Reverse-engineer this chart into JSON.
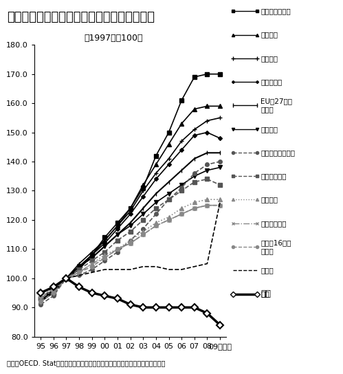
{
  "title": "日本だけ賃下げ！　一時間当たり賃金の推移",
  "subtitle": "（1997年＝100）",
  "footnote": "出典：OECD. Statより作成。民間産業計の賃金（時間外手当・一時金）含む。",
  "years": [
    1995,
    1996,
    1997,
    1998,
    1999,
    2000,
    2001,
    2002,
    2003,
    2004,
    2005,
    2006,
    2007,
    2008,
    2009
  ],
  "xlabels": [
    "95",
    "96",
    "97",
    "98",
    "99",
    "00",
    "01",
    "02",
    "03",
    "04",
    "05",
    "06",
    "07",
    "08",
    "09（年）"
  ],
  "ylim": [
    80.0,
    180.0
  ],
  "yticks": [
    80.0,
    90.0,
    100.0,
    110.0,
    120.0,
    130.0,
    140.0,
    150.0,
    160.0,
    170.0,
    180.0
  ],
  "series": [
    {
      "label": "オーストラリア",
      "color": "#000000",
      "linestyle": "-",
      "marker": "s",
      "markersize": 4,
      "linewidth": 1.2,
      "data": [
        93,
        95,
        100,
        103,
        108,
        114,
        119,
        124,
        131,
        142,
        150,
        161,
        169,
        170,
        170
      ]
    },
    {
      "label": "スペイン",
      "color": "#000000",
      "linestyle": "-",
      "marker": "^",
      "markersize": 4,
      "linewidth": 1.2,
      "data": [
        92,
        95,
        100,
        104,
        108,
        113,
        118,
        124,
        132,
        139,
        146,
        153,
        158,
        159,
        159
      ]
    },
    {
      "label": "イギリス",
      "color": "#000000",
      "linestyle": "-",
      "marker": "+",
      "markersize": 5,
      "linewidth": 1.2,
      "data": [
        92,
        96,
        100,
        105,
        109,
        113,
        118,
        123,
        130,
        136,
        141,
        147,
        151,
        154,
        155
      ]
    },
    {
      "label": "デンマーク",
      "color": "#000000",
      "linestyle": "-",
      "marker": "D",
      "markersize": 3,
      "linewidth": 1.2,
      "data": [
        93,
        96,
        100,
        104,
        108,
        112,
        117,
        122,
        128,
        134,
        139,
        144,
        149,
        150,
        148
      ]
    },
    {
      "label": "EU（27ヵ国\n平均）",
      "color": "#000000",
      "linestyle": "-",
      "marker": "|",
      "markersize": 5,
      "linewidth": 1.5,
      "data": [
        93,
        96,
        100,
        104,
        107,
        111,
        115,
        119,
        124,
        129,
        133,
        137,
        141,
        143,
        143
      ]
    },
    {
      "label": "アメリカ",
      "color": "#000000",
      "linestyle": "-",
      "marker": "v",
      "markersize": 4,
      "linewidth": 1.2,
      "data": [
        95,
        97,
        100,
        104,
        107,
        111,
        115,
        118,
        122,
        126,
        129,
        132,
        135,
        137,
        138
      ]
    },
    {
      "label": "ニュージーランド",
      "color": "#555555",
      "linestyle": "--",
      "marker": "o",
      "markersize": 4,
      "linewidth": 1.2,
      "data": [
        91,
        94,
        100,
        101,
        103,
        106,
        109,
        113,
        117,
        122,
        127,
        131,
        136,
        139,
        140
      ]
    },
    {
      "label": "スウェーデン",
      "color": "#555555",
      "linestyle": "--",
      "marker": "s",
      "markersize": 4,
      "linewidth": 1.2,
      "data": [
        93,
        97,
        100,
        103,
        106,
        109,
        113,
        116,
        120,
        124,
        127,
        130,
        133,
        134,
        132
      ]
    },
    {
      "label": "フランス",
      "color": "#888888",
      "linestyle": ":",
      "marker": "^",
      "markersize": 4,
      "linewidth": 1.2,
      "data": [
        94,
        96,
        100,
        102,
        105,
        108,
        110,
        113,
        116,
        119,
        121,
        124,
        126,
        127,
        127
      ]
    },
    {
      "label": "オーストリア",
      "color": "#888888",
      "linestyle": "-.",
      "marker": "x",
      "markersize": 4,
      "linewidth": 1.2,
      "data": [
        93,
        96,
        100,
        102,
        105,
        107,
        110,
        112,
        115,
        118,
        120,
        122,
        124,
        125,
        125
      ]
    },
    {
      "label": "欧州（16ヵ国\n平均）",
      "color": "#888888",
      "linestyle": "--",
      "marker": "o",
      "markersize": 4,
      "linewidth": 1.2,
      "data": [
        92,
        95,
        100,
        102,
        104,
        107,
        110,
        112,
        115,
        118,
        120,
        122,
        124,
        125,
        125
      ]
    },
    {
      "label": "ドイツ",
      "color": "#000000",
      "linestyle": "--",
      "marker": "",
      "markersize": 0,
      "linewidth": 1.2,
      "data": [
        95,
        97,
        100,
        101,
        102,
        103,
        103,
        103,
        104,
        104,
        103,
        103,
        104,
        105,
        126
      ]
    },
    {
      "label": "日本",
      "color": "#000000",
      "linestyle": "-",
      "marker": "D",
      "markersize": 5,
      "linewidth": 2.5,
      "data": [
        95,
        97,
        100,
        97,
        95,
        94,
        93,
        91,
        90,
        90,
        90,
        90,
        90,
        88,
        84
      ]
    }
  ]
}
